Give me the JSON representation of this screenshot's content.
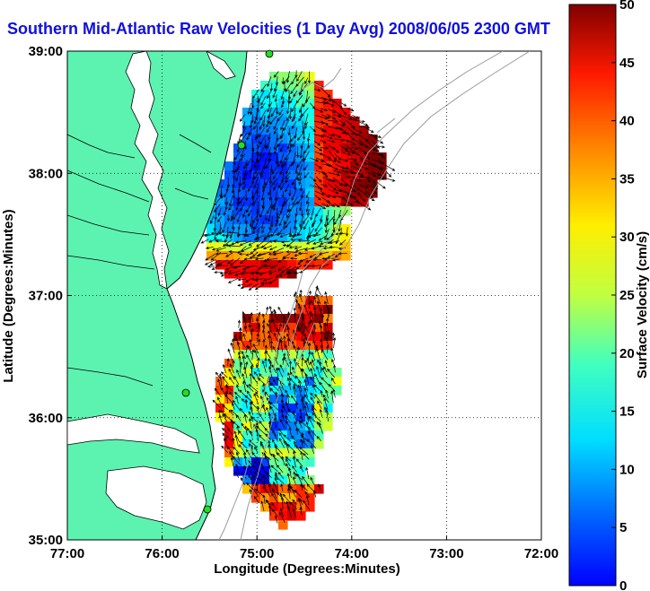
{
  "title": "Southern Mid-Atlantic Raw Velocities (1 Day Avg) 2008/06/05 2300 GMT",
  "colors": {
    "land": "#5cf3b0",
    "coast": "#000000",
    "bathymetry": "#9a9a9a",
    "vector": "#000000",
    "station": "#22dd22"
  },
  "chart_data": {
    "type": "heatmap",
    "xlabel": "Longitude (Degrees:Minutes)",
    "ylabel": "Latitude (Degrees:Minutes)",
    "x_ticks": [
      "77:00",
      "76:00",
      "75:00",
      "74:00",
      "73:00",
      "72:00"
    ],
    "y_ticks": [
      "39:00",
      "38:00",
      "37:00",
      "36:00",
      "35:00"
    ],
    "xlim": [
      -77,
      -72
    ],
    "ylim": [
      35,
      39
    ],
    "grid": true,
    "colorbar": {
      "label": "Surface Velocity (cm/s)",
      "ticks": [
        "0",
        "5",
        "10",
        "15",
        "20",
        "25",
        "30",
        "35",
        "40",
        "45",
        "50"
      ],
      "range": [
        0,
        50
      ],
      "colormap": "jet"
    }
  }
}
